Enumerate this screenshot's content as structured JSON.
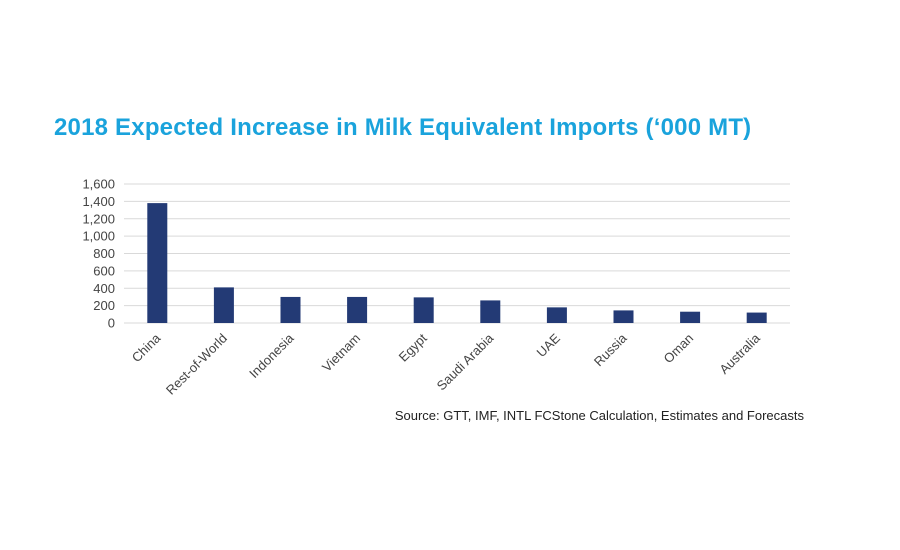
{
  "chart_data": {
    "type": "bar",
    "title": "2018 Expected Increase in Milk Equivalent Imports (‘000 MT)",
    "xlabel": "",
    "ylabel": "",
    "ylim": [
      0,
      1600
    ],
    "yticks": [
      0,
      200,
      400,
      600,
      800,
      1000,
      1200,
      1400,
      1600
    ],
    "ytick_labels": [
      "0",
      "200",
      "400",
      "600",
      "800",
      "1,000",
      "1,200",
      "1,400",
      "1,600"
    ],
    "categories": [
      "China",
      "Rest-of-World",
      "Indonesia",
      "Vietnam",
      "Egypt",
      "Saudi Arabia",
      "UAE",
      "Russia",
      "Oman",
      "Australia"
    ],
    "values": [
      1380,
      410,
      300,
      300,
      295,
      260,
      180,
      145,
      130,
      120
    ],
    "grid": true,
    "legend": "none",
    "bar_color": "#233a75",
    "grid_color": "#d9d9d9",
    "title_color": "#1aa3dc"
  },
  "source": "Source: GTT, IMF, INTL FCStone Calculation, Estimates and Forecasts"
}
